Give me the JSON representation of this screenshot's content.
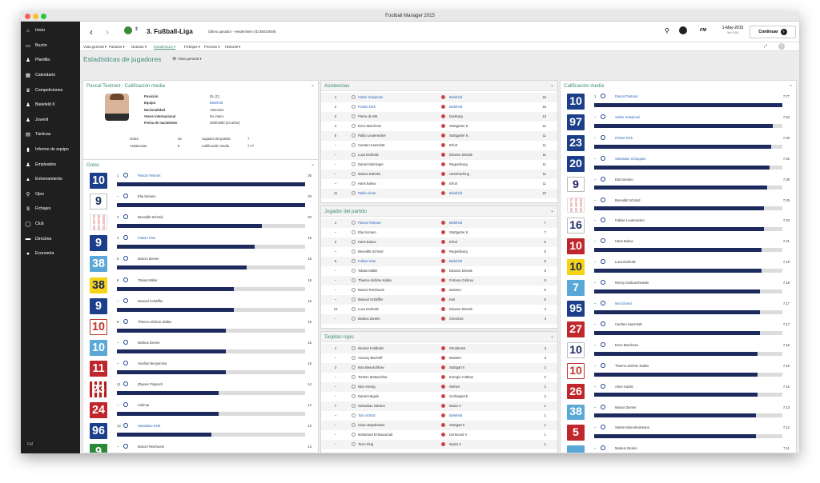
{
  "window": {
    "title": "Football Manager 2015"
  },
  "sidebar": {
    "items": [
      {
        "label": "Inicio",
        "icon": "home-icon",
        "glyph": "⌂"
      },
      {
        "label": "Buzón",
        "icon": "inbox-icon",
        "glyph": "▭"
      },
      {
        "label": "Plantilla",
        "icon": "squad-icon",
        "glyph": "♟"
      },
      {
        "label": "Calendario",
        "icon": "calendar-icon",
        "glyph": "▦"
      },
      {
        "label": "Competiciones",
        "icon": "trophy-icon",
        "glyph": "♛"
      },
      {
        "label": "Bielefeld II",
        "icon": "reserve-team-icon",
        "glyph": "♟"
      },
      {
        "label": "Juvenil",
        "icon": "youth-team-icon",
        "glyph": "♟"
      },
      {
        "label": "Tácticas",
        "icon": "tactics-icon",
        "glyph": "▤"
      },
      {
        "label": "Informe de equipo",
        "icon": "team-report-icon",
        "glyph": "▮"
      },
      {
        "label": "Empleados",
        "icon": "staff-icon",
        "glyph": "♟"
      },
      {
        "label": "Entrenamiento",
        "icon": "training-icon",
        "glyph": "▲"
      },
      {
        "label": "Ojeo",
        "icon": "scouting-icon",
        "glyph": "⚲"
      },
      {
        "label": "Fichajes",
        "icon": "transfers-icon",
        "glyph": "$"
      },
      {
        "label": "Club",
        "icon": "club-icon",
        "glyph": "◯"
      },
      {
        "label": "Directiva",
        "icon": "board-icon",
        "glyph": "▬"
      },
      {
        "label": "Economía",
        "icon": "finances-icon",
        "glyph": "●"
      }
    ],
    "footer": "FM"
  },
  "header": {
    "competition": "3. Fußball-Liga",
    "subtitle": "Último ganador - Heidenheim (ID:35010926)",
    "date": "1-May-2015",
    "time": "Vie 0:00",
    "continue": "Continuar",
    "fm_label": "FM"
  },
  "subnav": {
    "items": [
      "Vista general ▾",
      "Partidos ▾",
      "Noticias ▾",
      "Estadísticas ▾",
      "Fichajes ▾",
      "Premios ▾",
      "Historial ▾"
    ],
    "active": 3
  },
  "page": {
    "title": "Estadísticas de jugadores",
    "view": "Vista general"
  },
  "player": {
    "title": "Pascal Testroet - Calificación media",
    "fields": [
      [
        "Posición",
        "DL (C)"
      ],
      [
        "Equipo",
        "Bielefeld"
      ],
      [
        "Nacionalidad",
        "Alemania"
      ],
      [
        "Veces internacional",
        "No intern."
      ],
      [
        "Fecha de nacimiento",
        "26/9/1990 (24 años)"
      ]
    ],
    "stats": [
      [
        "Goles",
        "26",
        "Jugador del partido",
        "7"
      ],
      [
        "Asistencias",
        "6",
        "Calificación media",
        "7,77"
      ]
    ]
  },
  "goles": {
    "title": "Goles",
    "rows": [
      {
        "rank": "1",
        "name": "Pascal Testroet",
        "value": "26",
        "num": "10",
        "style": "blue",
        "fill": 1.0,
        "link": true
      },
      {
        "rank": "–",
        "name": "Elia Soriano",
        "value": "26",
        "num": "9",
        "style": "white",
        "fill": 1.0
      },
      {
        "rank": "3",
        "name": "Benedikt Schmid",
        "value": "20",
        "num": "11",
        "style": "redstripe",
        "fill": 0.77
      },
      {
        "rank": "4",
        "name": "Fabian Klos",
        "value": "19",
        "num": "9",
        "style": "blue",
        "fill": 0.73,
        "link": true
      },
      {
        "rank": "5",
        "name": "Marcel Ziemer",
        "value": "18",
        "num": "38",
        "style": "lightblue",
        "fill": 0.69
      },
      {
        "rank": "6",
        "name": "Tobias Müller",
        "value": "16",
        "num": "38",
        "style": "yellow",
        "fill": 0.62
      },
      {
        "rank": "–",
        "name": "Manuel Schäffler",
        "value": "16",
        "num": "9",
        "style": "blue",
        "fill": 0.62
      },
      {
        "rank": "8",
        "name": "Thiemo-Jérôme Kialka",
        "value": "15",
        "num": "10",
        "style": "whitered",
        "fill": 0.58
      },
      {
        "rank": "–",
        "name": "Markus Ziereis",
        "value": "15",
        "num": "10",
        "style": "lightblue",
        "fill": 0.58
      },
      {
        "rank": "–",
        "name": "Soufian Benyamina",
        "value": "15",
        "num": "11",
        "style": "red",
        "fill": 0.58
      },
      {
        "rank": "11",
        "name": "Zbynek Pospech",
        "value": "14",
        "num": "23",
        "style": "redstripe2",
        "fill": 0.54
      },
      {
        "rank": "–",
        "name": "Cidimar",
        "value": "14",
        "num": "24",
        "style": "red",
        "fill": 0.54
      },
      {
        "rank": "13",
        "name": "Sebastian Kerk",
        "value": "13",
        "num": "96",
        "style": "blue",
        "fill": 0.5,
        "link": true
      },
      {
        "rank": "–",
        "name": "Marcel Reichwein",
        "value": "13",
        "num": "9",
        "style": "green",
        "fill": 0.5
      }
    ]
  },
  "asistencias": {
    "title": "Asistencias",
    "rows": [
      [
        "1",
        "Valmir Sulejmani",
        "Bielefeld",
        "16",
        true
      ],
      [
        "2",
        "Florian Dick",
        "Bielefeld",
        "15",
        true
      ],
      [
        "3",
        "Pierre de Wit",
        "Duisburg",
        "13",
        false
      ],
      [
        "4",
        "Enzo Marchese",
        "Stuttgarter K.",
        "12",
        false
      ],
      [
        "5",
        "Pablo Leutenecker",
        "Stuttgarter K.",
        "11",
        false
      ],
      [
        "–",
        "Carsten Kammlott",
        "Erfurt",
        "11",
        false
      ],
      [
        "–",
        "Luca Dürholtz",
        "Dinamo Dresde",
        "11",
        false
      ],
      [
        "–",
        "Daniel Steininger",
        "Regensburg",
        "11",
        false
      ],
      [
        "–",
        "Marius Duhnke",
        "Unterhaching",
        "11",
        false
      ],
      [
        "–",
        "Haris Bukva",
        "Erfurt",
        "11",
        false
      ],
      [
        "11",
        "Pablo Aimar",
        "Bielefeld",
        "10",
        true
      ]
    ]
  },
  "jugador_partido": {
    "title": "Jugador del partido",
    "rows": [
      [
        "1",
        "Pascal Testroet",
        "Bielefeld",
        "7",
        true
      ],
      [
        "–",
        "Elia Soriano",
        "Stuttgarter K.",
        "7",
        false
      ],
      [
        "3",
        "Haris Bukva",
        "Erfurt",
        "6",
        false
      ],
      [
        "–",
        "Benedikt Schmid",
        "Regensburg",
        "6",
        false
      ],
      [
        "5",
        "Fabian Klos",
        "Bielefeld",
        "5",
        true
      ],
      [
        "–",
        "Tobias Müller",
        "Dinamo Dresde",
        "5",
        false
      ],
      [
        "–",
        "Thiemo-Jérôme Kialka",
        "Fortuna Colonia",
        "5",
        false
      ],
      [
        "–",
        "Marcel Reichwein",
        "Münster",
        "5",
        false
      ],
      [
        "–",
        "Manuel Schäffler",
        "Kiel",
        "5",
        false
      ],
      [
        "10",
        "Luca Dürholtz",
        "Dinamo Dresde",
        "4",
        false
      ],
      [
        "–",
        "Markus Ziereis",
        "Chemnitz",
        "4",
        false
      ]
    ]
  },
  "tarjetas": {
    "title": "Tarjetas rojas",
    "rows": [
      [
        "1",
        "Nicolas Feldhahn",
        "Osnabrück",
        "3",
        false
      ],
      [
        "–",
        "Amaury Bischoff",
        "Münster",
        "3",
        false
      ],
      [
        "3",
        "Max Besuschkow",
        "Stuttgart II",
        "2",
        false
      ],
      [
        "–",
        "Torsten Mattuschka",
        "Energie Cottbus",
        "2",
        false
      ],
      [
        "–",
        "Nico Herzig",
        "Wehen",
        "2",
        false
      ],
      [
        "–",
        "Daniel Hägele",
        "Großaspach",
        "2",
        false
      ],
      [
        "7",
        "Sebastian Gärtner",
        "Mainz II",
        "1",
        false
      ],
      [
        "–",
        "Tom Schütz",
        "Bielefeld",
        "1",
        true
      ],
      [
        "–",
        "Sinan Büyükseker",
        "Stuttgart II",
        "1",
        false
      ],
      [
        "–",
        "Mohamed El-Bouazzati",
        "Dortmund II",
        "1",
        false
      ],
      [
        "–",
        "Tevin Ihrig",
        "Mainz II",
        "1",
        false
      ]
    ]
  },
  "calificacion": {
    "title": "Calificación media",
    "rows": [
      {
        "rank": "1",
        "name": "Pascal Testroet",
        "value": "7,77",
        "num": "10",
        "style": "blue",
        "fill": 1.0,
        "link": true
      },
      {
        "rank": "–",
        "name": "Valmir Sulejmani",
        "value": "7,53",
        "num": "97",
        "style": "blue",
        "fill": 0.95,
        "link": true
      },
      {
        "rank": "–",
        "name": "Florian Dick",
        "value": "7,49",
        "num": "23",
        "style": "blue",
        "fill": 0.94,
        "link": true
      },
      {
        "rank": "–",
        "name": "Sebastian Schuppan",
        "value": "7,42",
        "num": "20",
        "style": "blue",
        "fill": 0.93,
        "link": true
      },
      {
        "rank": "–",
        "name": "Elia Soriano",
        "value": "7,39",
        "num": "9",
        "style": "white",
        "fill": 0.92
      },
      {
        "rank": "–",
        "name": "Benedikt Schmid",
        "value": "7,25",
        "num": "11",
        "style": "redstripe",
        "fill": 0.9
      },
      {
        "rank": "–",
        "name": "Fabian Leutenecker",
        "value": "7,23",
        "num": "16",
        "style": "white",
        "fill": 0.9
      },
      {
        "rank": "–",
        "name": "Haris Bukva",
        "value": "7,21",
        "num": "10",
        "style": "red",
        "fill": 0.89
      },
      {
        "rank": "–",
        "name": "Luca Dürholtz",
        "value": "7,19",
        "num": "10",
        "style": "yellow",
        "fill": 0.89
      },
      {
        "rank": "–",
        "name": "Ronny Garbuschewski",
        "value": "7,18",
        "num": "7",
        "style": "lightblue",
        "fill": 0.88
      },
      {
        "rank": "–",
        "name": "Moi Gómez",
        "value": "7,17",
        "num": "95",
        "style": "blue",
        "fill": 0.88,
        "link": true
      },
      {
        "rank": "–",
        "name": "Carsten Kammlott",
        "value": "7,17",
        "num": "27",
        "style": "red",
        "fill": 0.88
      },
      {
        "rank": "–",
        "name": "Enzo Marchese",
        "value": "7,16",
        "num": "10",
        "style": "white",
        "fill": 0.87
      },
      {
        "rank": "–",
        "name": "Thiemo-Jérôme Kialka",
        "value": "7,16",
        "num": "10",
        "style": "whitered",
        "fill": 0.87
      },
      {
        "rank": "–",
        "name": "Amer Kadric",
        "value": "7,15",
        "num": "26",
        "style": "red",
        "fill": 0.87
      },
      {
        "rank": "–",
        "name": "Marcel Ziemer",
        "value": "7,13",
        "num": "38",
        "style": "lightblue",
        "fill": 0.86
      },
      {
        "rank": "–",
        "name": "Stefan Kleineheismann",
        "value": "7,12",
        "num": "5",
        "style": "red",
        "fill": 0.86
      },
      {
        "rank": "–",
        "name": "Markus Ziereis",
        "value": "7,11",
        "num": "",
        "style": "lightblue",
        "fill": 0.85
      }
    ]
  },
  "colors": {
    "accent": "#3d8b7a",
    "bar": "#1c2a5e",
    "link": "#2a66b8"
  }
}
